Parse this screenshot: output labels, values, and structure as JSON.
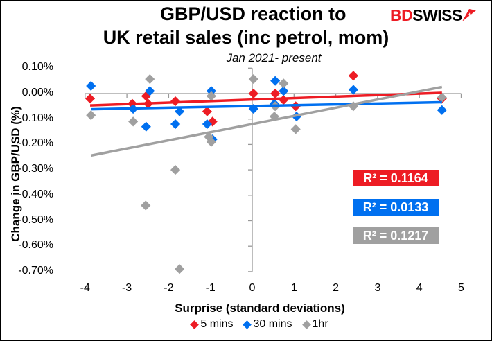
{
  "title_line1": "GBP/USD reaction to",
  "title_line2": "UK retail sales (inc petrol, mom)",
  "subtitle": "Jan 2021- present",
  "logo": {
    "part1": "BD",
    "part2": "SWISS",
    "color": "#ed1c24"
  },
  "chart_data": {
    "type": "scatter",
    "title": "GBP/USD reaction to UK retail sales (inc petrol, mom)",
    "subtitle": "Jan 2021- present",
    "xlabel": "Surprise (standard deviations)",
    "ylabel": "Change in GBP/USD  (%)",
    "xlim": [
      -4,
      5
    ],
    "ylim": [
      -0.7,
      0.1
    ],
    "x_ticks": [
      "-4",
      "-3",
      "-2",
      "-1",
      "0",
      "1",
      "2",
      "3",
      "4",
      "5"
    ],
    "y_ticks": [
      "0.10%",
      "0.00%",
      "-0.10%",
      "-0.20%",
      "-0.30%",
      "-0.40%",
      "-0.50%",
      "-0.60%",
      "-0.70%"
    ],
    "grid": false,
    "legend": "bottom",
    "trendlines": true,
    "series": [
      {
        "name": "5 mins",
        "color": "#ed1c24",
        "r2_label": "R² = 0.1164",
        "x": [
          -3.88,
          -2.87,
          -2.54,
          -2.49,
          -1.84,
          -1.08,
          -0.95,
          0.03,
          0.55,
          0.75,
          1.04,
          2.42,
          4.54
        ],
        "y": [
          -0.02,
          -0.04,
          -0.01,
          -0.04,
          -0.03,
          -0.07,
          -0.11,
          0.0,
          0.0,
          -0.025,
          -0.05,
          0.07,
          -0.02
        ]
      },
      {
        "name": "30 mins",
        "color": "#0070f0",
        "r2_label": "R² = 0.0133",
        "x": [
          -3.86,
          -2.85,
          -2.45,
          -2.54,
          -1.74,
          -1.84,
          -0.98,
          -1.08,
          -0.95,
          0.03,
          0.55,
          0.53,
          0.75,
          1.06,
          2.42,
          4.54
        ],
        "y": [
          0.03,
          -0.06,
          0.01,
          -0.13,
          -0.07,
          -0.12,
          0.01,
          -0.12,
          -0.18,
          -0.06,
          0.05,
          -0.04,
          0.01,
          -0.09,
          0.015,
          -0.065
        ]
      },
      {
        "name": "1hr",
        "color": "#a0a0a0",
        "r2_label": "R² = 0.1217",
        "x": [
          -3.86,
          -2.85,
          -2.45,
          -2.55,
          -1.84,
          -1.74,
          -0.98,
          -1.04,
          -0.98,
          0.03,
          0.53,
          0.55,
          0.75,
          1.04,
          2.42,
          4.54
        ],
        "y": [
          -0.085,
          -0.11,
          0.057,
          -0.44,
          -0.3,
          -0.69,
          -0.01,
          -0.17,
          -0.19,
          0.057,
          -0.09,
          -0.05,
          0.04,
          -0.14,
          -0.05,
          -0.015
        ]
      }
    ]
  }
}
